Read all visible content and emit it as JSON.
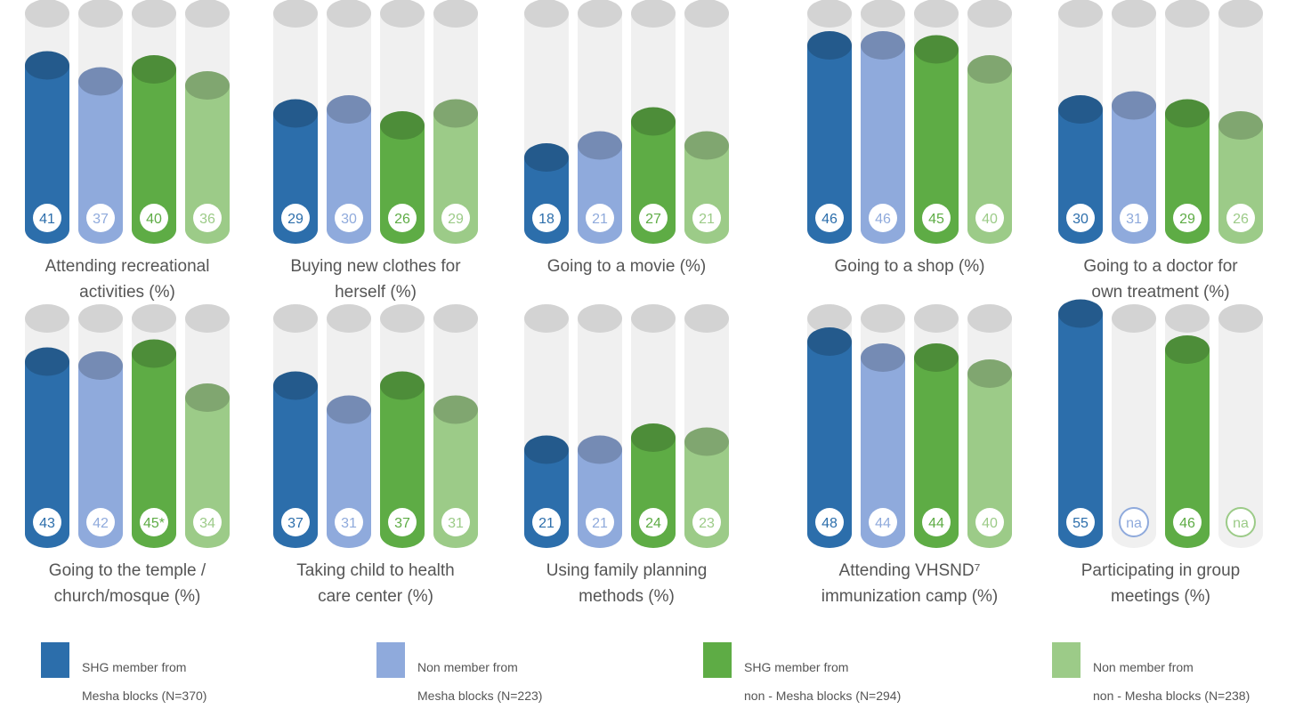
{
  "chart_data": {
    "type": "bar",
    "style": "3d-cylinder",
    "unit": "%",
    "series": [
      {
        "name": "SHG member from Mesha blocks (N=370)",
        "color": "#2c6eab",
        "text_color": "#2c6eab"
      },
      {
        "name": "Non member from Mesha blocks (N=223)",
        "color": "#8faadc",
        "text_color": "#8faadc"
      },
      {
        "name": "SHG member from non - Mesha blocks (N=294)",
        "color": "#5eac45",
        "text_color": "#5eac45"
      },
      {
        "name": "Non member from non - Mesha blocks (N=238)",
        "color": "#9ccb88",
        "text_color": "#9ccb88"
      }
    ],
    "panels": [
      {
        "label": "Attending recreational activities (%)",
        "label_lines": [
          "Attending recreational",
          "activities (%)"
        ],
        "values": [
          41,
          37,
          40,
          36
        ],
        "labels": [
          "41",
          "37",
          "40",
          "36"
        ]
      },
      {
        "label": "Buying new clothes for herself (%)",
        "label_lines": [
          "Buying new clothes for",
          "herself (%)"
        ],
        "values": [
          29,
          30,
          26,
          29
        ],
        "labels": [
          "29",
          "30",
          "26",
          "29"
        ]
      },
      {
        "label": "Going to a movie (%)",
        "label_lines": [
          "Going to a movie (%)"
        ],
        "values": [
          18,
          21,
          27,
          21
        ],
        "labels": [
          "18",
          "21",
          "27",
          "21"
        ]
      },
      {
        "label": "Going to a shop (%)",
        "label_lines": [
          "Going to a shop (%)"
        ],
        "values": [
          46,
          46,
          45,
          40
        ],
        "labels": [
          "46",
          "46",
          "45",
          "40"
        ]
      },
      {
        "label": "Going to a doctor for own treatment (%)",
        "label_lines": [
          "Going to  a doctor  for",
          "own  treatment (%)"
        ],
        "values": [
          30,
          31,
          29,
          26
        ],
        "labels": [
          "30",
          "31",
          "29",
          "26"
        ]
      },
      {
        "label": "Going to the temple / church/mosque (%)",
        "label_lines": [
          "Going to the temple /",
          "church/mosque (%)"
        ],
        "values": [
          43,
          42,
          45,
          34
        ],
        "labels": [
          "43",
          "42",
          "45*",
          "34"
        ]
      },
      {
        "label": "Taking child to health care center (%)",
        "label_lines": [
          "Taking child to health",
          "care center (%)"
        ],
        "values": [
          37,
          31,
          37,
          31
        ],
        "labels": [
          "37",
          "31",
          "37",
          "31"
        ]
      },
      {
        "label": "Using family planning methods (%)",
        "label_lines": [
          "Using family planning",
          "methods (%)"
        ],
        "values": [
          21,
          21,
          24,
          23
        ],
        "labels": [
          "21",
          "21",
          "24",
          "23"
        ]
      },
      {
        "label": "Attending VHSND7 immunization camp (%)",
        "label_lines": [
          "Attending VHSND⁷",
          "immunization camp (%)"
        ],
        "values": [
          48,
          44,
          44,
          40
        ],
        "labels": [
          "48",
          "44",
          "44",
          "40"
        ]
      },
      {
        "label": "Participating in group meetings (%)",
        "label_lines": [
          "Participating in group",
          "meetings (%)"
        ],
        "values": [
          55,
          null,
          46,
          null
        ],
        "labels": [
          "55",
          "na",
          "46",
          "na"
        ]
      }
    ],
    "ylim": [
      0,
      100
    ],
    "legend_position": "bottom"
  },
  "legend": [
    {
      "line1": "SHG member from",
      "line2": "Mesha blocks (N=370)"
    },
    {
      "line1": "Non member from",
      "line2": "Mesha blocks (N=223)"
    },
    {
      "line1": "SHG member from",
      "line2": "non - Mesha blocks (N=294)"
    },
    {
      "line1": "Non member from",
      "line2": "non - Mesha blocks (N=238)"
    }
  ]
}
